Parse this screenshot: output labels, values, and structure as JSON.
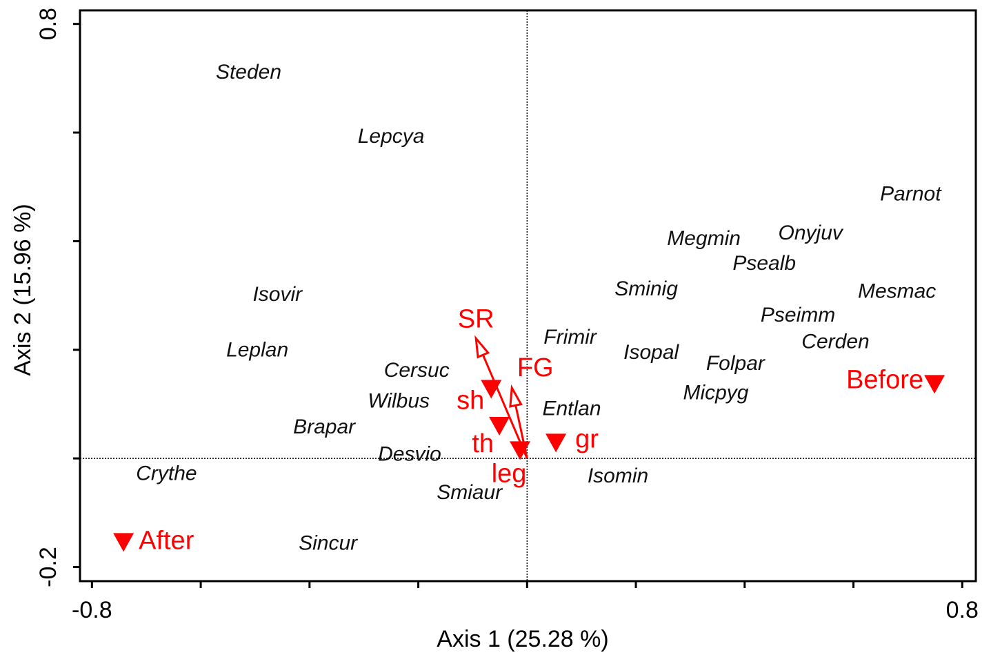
{
  "chart_data": {
    "type": "scatter",
    "xlabel": "Axis 1 (25.28 %)",
    "ylabel": "Axis 2 (15.96 %)",
    "xlim": [
      -0.822,
      0.825
    ],
    "ylim": [
      -0.226,
      0.825
    ],
    "xticks": [
      -0.8,
      0.8
    ],
    "yticks": [
      -0.2,
      0.8
    ],
    "xminorticks": [
      -0.6,
      -0.4,
      -0.2,
      0,
      0.2,
      0.4,
      0.6
    ],
    "yminorticks": [
      0,
      0.2,
      0.4,
      0.6
    ],
    "zero_lines": true,
    "species": [
      {
        "name": "Steden",
        "x": -0.512,
        "y": 0.709
      },
      {
        "name": "Lepcya",
        "x": -0.25,
        "y": 0.591
      },
      {
        "name": "Parnot",
        "x": 0.705,
        "y": 0.485
      },
      {
        "name": "Megmin",
        "x": 0.325,
        "y": 0.403
      },
      {
        "name": "Onyjuv",
        "x": 0.521,
        "y": 0.413
      },
      {
        "name": "Psealb",
        "x": 0.436,
        "y": 0.357
      },
      {
        "name": "Isovir",
        "x": -0.459,
        "y": 0.3
      },
      {
        "name": "Sminig",
        "x": 0.219,
        "y": 0.31
      },
      {
        "name": "Mesmac",
        "x": 0.68,
        "y": 0.306
      },
      {
        "name": "Pseimm",
        "x": 0.498,
        "y": 0.262
      },
      {
        "name": "Cerden",
        "x": 0.567,
        "y": 0.213
      },
      {
        "name": "Frimir",
        "x": 0.079,
        "y": 0.221
      },
      {
        "name": "Leplan",
        "x": -0.496,
        "y": 0.198
      },
      {
        "name": "Isopal",
        "x": 0.228,
        "y": 0.193
      },
      {
        "name": "Folpar",
        "x": 0.383,
        "y": 0.173
      },
      {
        "name": "Cersuc",
        "x": -0.203,
        "y": 0.16
      },
      {
        "name": "Micpyg",
        "x": 0.347,
        "y": 0.119
      },
      {
        "name": "Wilbus",
        "x": -0.236,
        "y": 0.104
      },
      {
        "name": "Entlan",
        "x": 0.082,
        "y": 0.09
      },
      {
        "name": "Brapar",
        "x": -0.373,
        "y": 0.056
      },
      {
        "name": "Desvio",
        "x": -0.216,
        "y": 0.006
      },
      {
        "name": "Crythe",
        "x": -0.663,
        "y": -0.03
      },
      {
        "name": "Isomin",
        "x": 0.167,
        "y": -0.034
      },
      {
        "name": "Smiaur",
        "x": -0.106,
        "y": -0.065
      },
      {
        "name": "Sincur",
        "x": -0.366,
        "y": -0.158
      }
    ],
    "centroids": {
      "color": "#ff0000",
      "points": [
        {
          "name": "After",
          "x": -0.742,
          "y": -0.154
        },
        {
          "name": "Before",
          "x": 0.749,
          "y": 0.137
        },
        {
          "name": "gr",
          "x": 0.053,
          "y": 0.029
        },
        {
          "name": "sh",
          "x": -0.066,
          "y": 0.128
        },
        {
          "name": "th",
          "x": -0.051,
          "y": 0.06
        },
        {
          "name": "leg",
          "x": -0.013,
          "y": 0.015
        }
      ]
    },
    "arrows": {
      "color": "#ff0000",
      "points": [
        {
          "name": "SR",
          "x": -0.094,
          "y": 0.221
        },
        {
          "name": "FG",
          "x": -0.028,
          "y": 0.13
        }
      ]
    }
  }
}
